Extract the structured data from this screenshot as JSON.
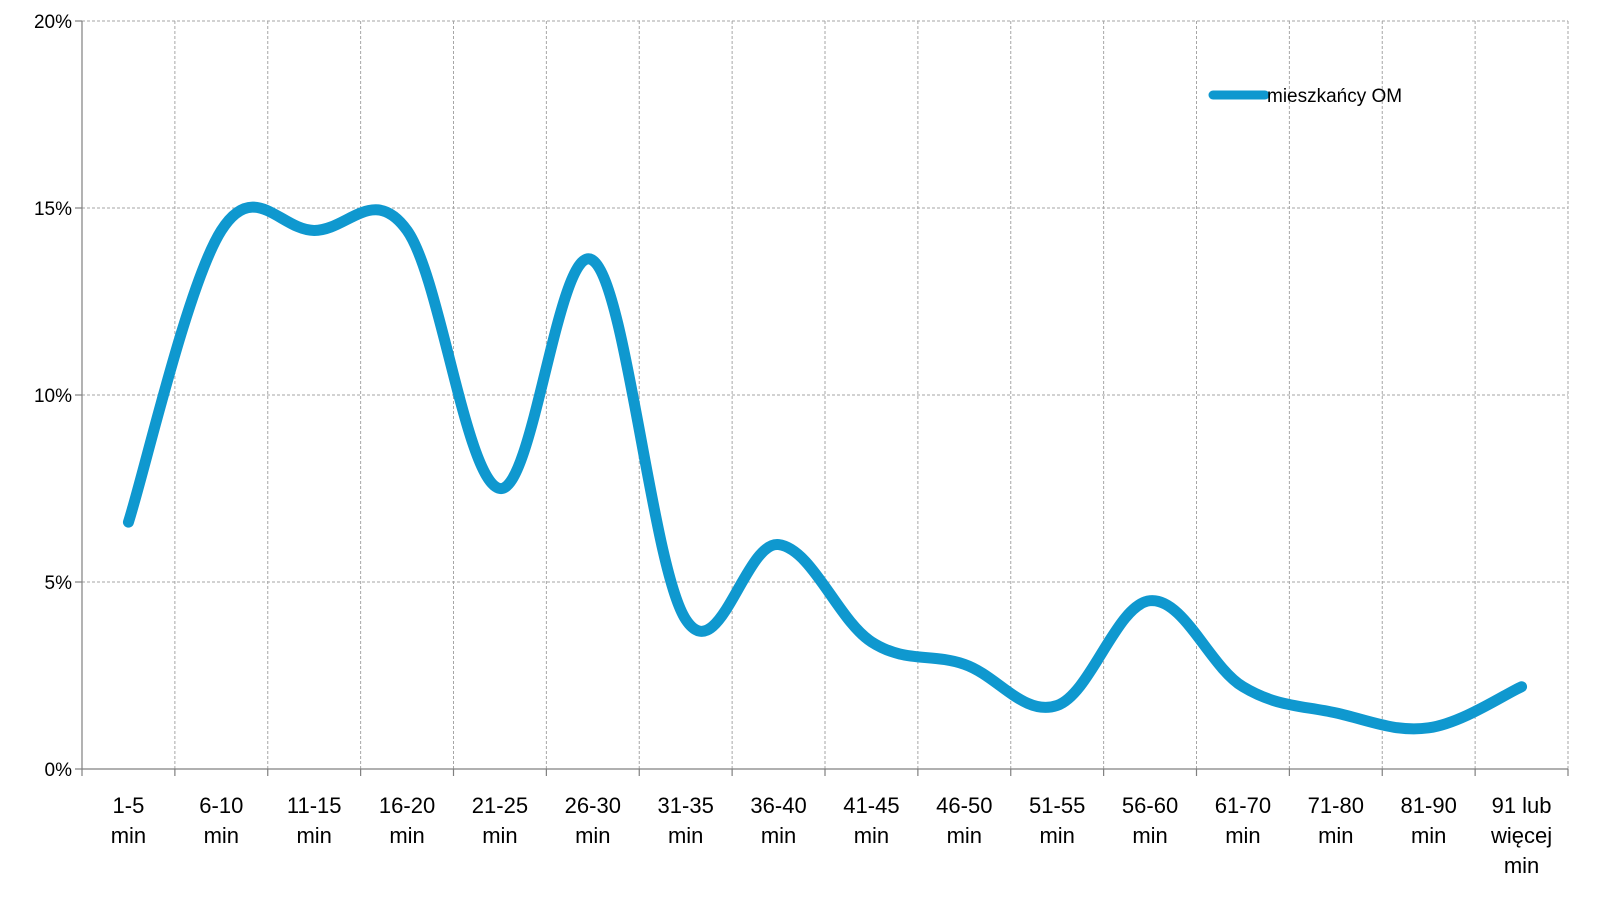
{
  "chart_data": {
    "type": "line",
    "title": "",
    "xlabel": "",
    "ylabel": "",
    "categories": [
      [
        "1-5",
        "min"
      ],
      [
        "6-10",
        "min"
      ],
      [
        "11-15",
        "min"
      ],
      [
        "16-20",
        "min"
      ],
      [
        "21-25",
        "min"
      ],
      [
        "26-30",
        "min"
      ],
      [
        "31-35",
        "min"
      ],
      [
        "36-40",
        "min"
      ],
      [
        "41-45",
        "min"
      ],
      [
        "46-50",
        "min"
      ],
      [
        "51-55",
        "min"
      ],
      [
        "56-60",
        "min"
      ],
      [
        "61-70",
        "min"
      ],
      [
        "71-80",
        "min"
      ],
      [
        "81-90",
        "min"
      ],
      [
        "91 lub",
        "więcej",
        "min"
      ]
    ],
    "series": [
      {
        "name": "mieszkańcy OM",
        "color": "#0f98cf",
        "values": [
          6.6,
          14.4,
          14.4,
          14.4,
          7.5,
          13.6,
          4.0,
          6.0,
          3.4,
          2.8,
          1.7,
          4.5,
          2.2,
          1.5,
          1.1,
          2.2
        ]
      }
    ],
    "ylim": [
      0,
      20
    ],
    "y_ticks": [
      "0%",
      "5%",
      "10%",
      "15%",
      "20%"
    ],
    "y_tick_values": [
      0,
      5,
      10,
      15,
      20
    ],
    "grid": true,
    "smooth": true,
    "legend_position": "top-right"
  }
}
